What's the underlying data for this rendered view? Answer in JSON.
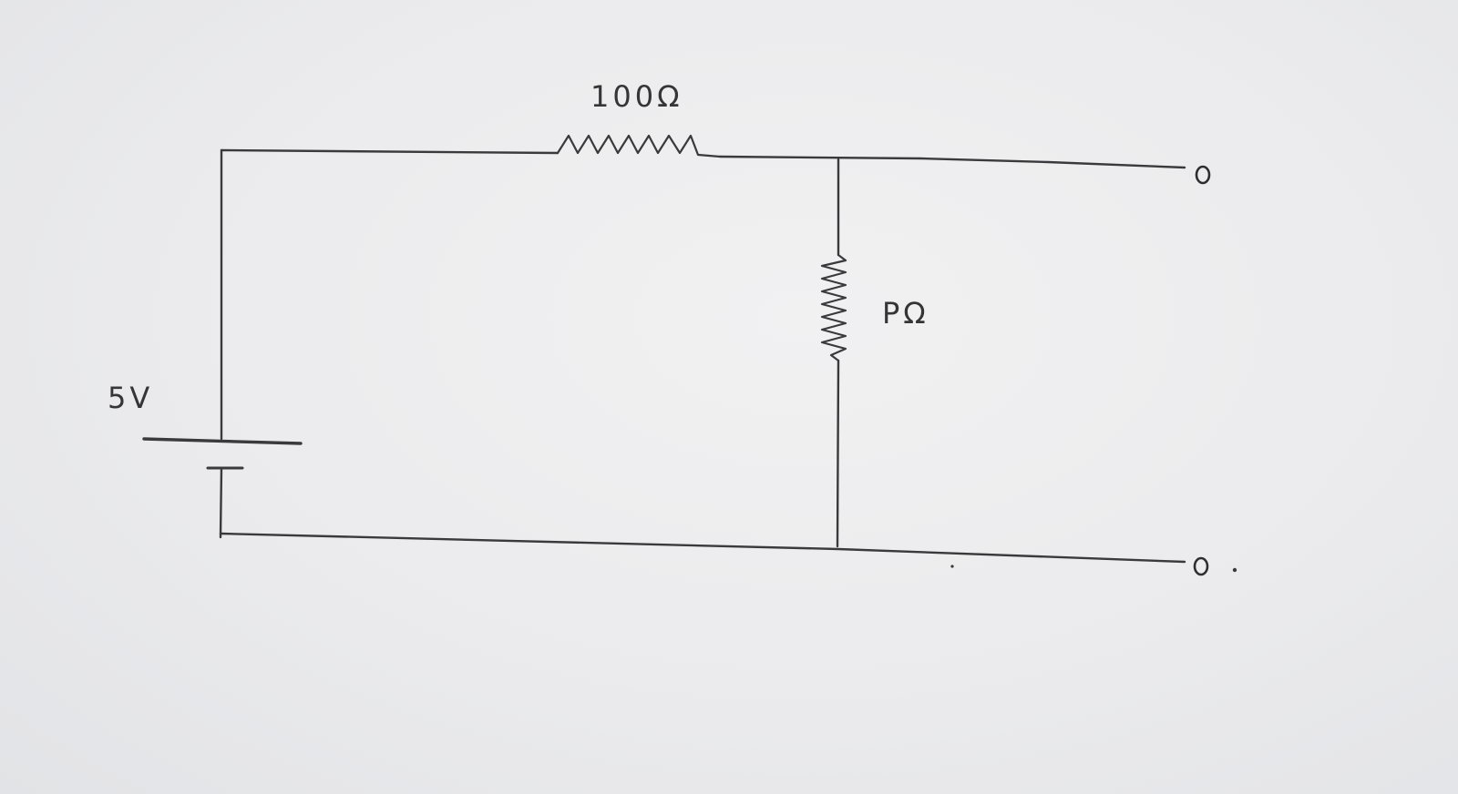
{
  "labels": {
    "series_resistor": "100Ω",
    "shunt_resistor": "PΩ",
    "source_voltage": "5V"
  },
  "colors": {
    "paper": "#ecedef",
    "ink": "#3a3a3c"
  }
}
